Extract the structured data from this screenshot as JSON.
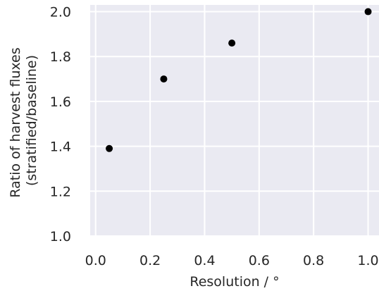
{
  "chart_data": {
    "type": "scatter",
    "title": "",
    "xlabel": "Resolution / °",
    "ylabel_lines": [
      "Ratio of harvest fluxes",
      "(stratified/baseline)"
    ],
    "xlim": [
      -0.02,
      1.04
    ],
    "ylim": [
      1.0,
      2.03
    ],
    "xticks": [
      0.0,
      0.2,
      0.4,
      0.6,
      0.8,
      1.0
    ],
    "xtick_labels": [
      "0.0",
      "0.2",
      "0.4",
      "0.6",
      "0.8",
      "1.0"
    ],
    "yticks": [
      1.0,
      1.2,
      1.4,
      1.6,
      1.8,
      2.0
    ],
    "ytick_labels": [
      "1.0",
      "1.2",
      "1.4",
      "1.6",
      "1.8",
      "2.0"
    ],
    "grid": true,
    "series": [
      {
        "x": [
          0.05,
          0.25,
          0.5,
          1.0
        ],
        "y": [
          1.39,
          1.7,
          1.86,
          2.0
        ]
      }
    ],
    "colors": {
      "plot_background": "#eaeaf2",
      "grid": "#ffffff",
      "marker": "#000000",
      "text": "#262626"
    }
  }
}
